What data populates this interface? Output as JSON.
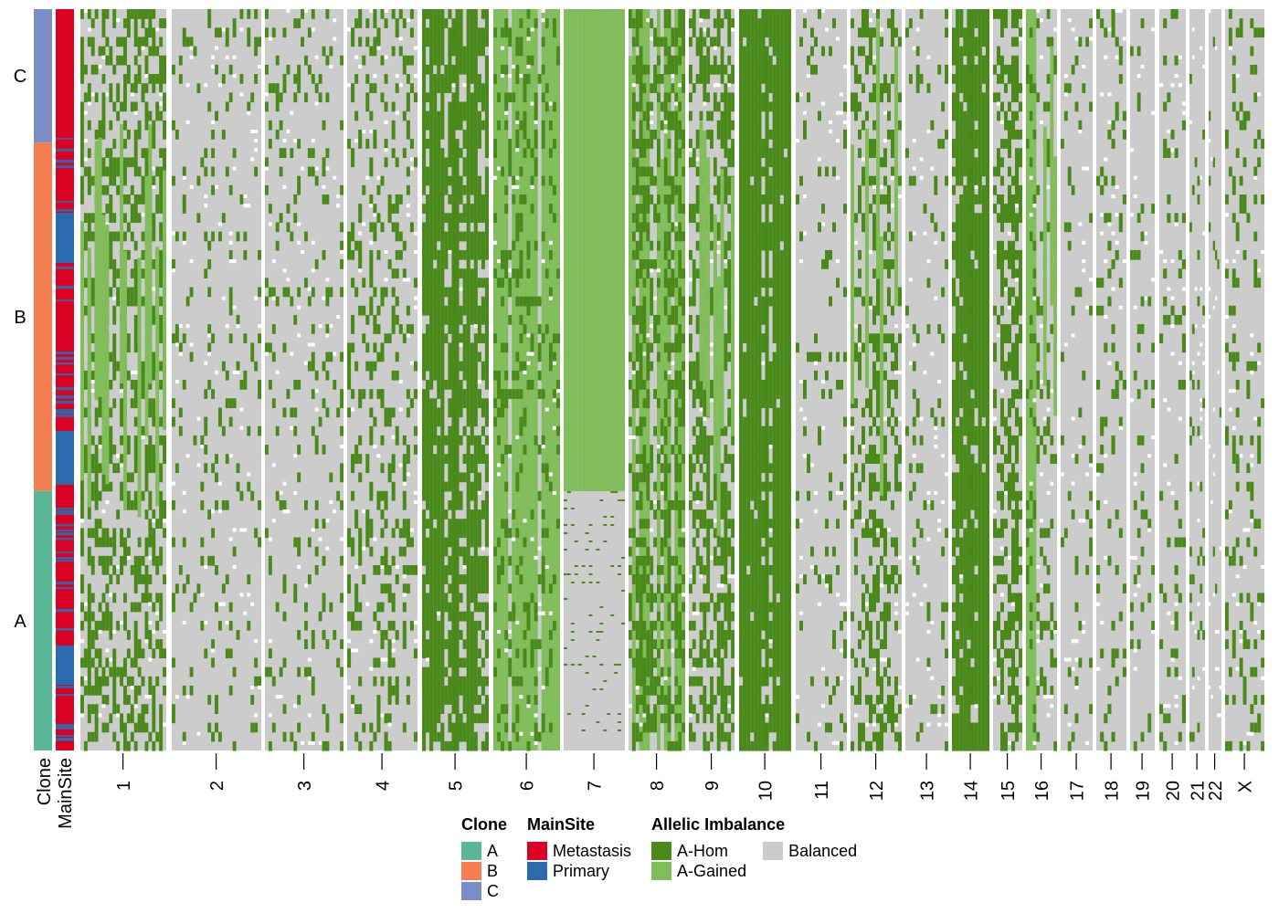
{
  "chart_data": {
    "type": "heatmap",
    "row_annotation_labels": [
      "Clone",
      "MainSite"
    ],
    "clone_groups": [
      {
        "label": "C",
        "fraction": 0.18
      },
      {
        "label": "B",
        "fraction": 0.47
      },
      {
        "label": "A",
        "fraction": 0.35
      }
    ],
    "chromosomes": [
      {
        "label": "1",
        "ahom": 0.5,
        "again": 0.35,
        "topchange": false
      },
      {
        "label": "2",
        "ahom": 0.1,
        "again": 0.02,
        "topchange": false
      },
      {
        "label": "3",
        "ahom": 0.12,
        "again": 0.02,
        "topchange": false
      },
      {
        "label": "4",
        "ahom": 0.22,
        "again": 0.03,
        "topchange": false
      },
      {
        "label": "5",
        "ahom": 0.82,
        "again": 0.12,
        "topchange": false
      },
      {
        "label": "6",
        "ahom": 0.2,
        "again": 0.72,
        "topchange": false
      },
      {
        "label": "7",
        "ahom": 0.05,
        "again": 0.9,
        "topchange": true
      },
      {
        "label": "8",
        "ahom": 0.45,
        "again": 0.45,
        "topchange": false
      },
      {
        "label": "9",
        "ahom": 0.5,
        "again": 0.35,
        "topchange": false
      },
      {
        "label": "10",
        "ahom": 0.88,
        "again": 0.08,
        "topchange": false
      },
      {
        "label": "11",
        "ahom": 0.08,
        "again": 0.03,
        "topchange": false
      },
      {
        "label": "12",
        "ahom": 0.35,
        "again": 0.25,
        "topchange": false
      },
      {
        "label": "13",
        "ahom": 0.08,
        "again": 0.02,
        "topchange": false
      },
      {
        "label": "14",
        "ahom": 0.85,
        "again": 0.05,
        "topchange": false
      },
      {
        "label": "15",
        "ahom": 0.55,
        "again": 0.1,
        "topchange": false
      },
      {
        "label": "16",
        "ahom": 0.15,
        "again": 0.4,
        "topchange": false
      },
      {
        "label": "17",
        "ahom": 0.08,
        "again": 0.02,
        "topchange": false
      },
      {
        "label": "18",
        "ahom": 0.15,
        "again": 0.03,
        "topchange": false
      },
      {
        "label": "19",
        "ahom": 0.1,
        "again": 0.02,
        "topchange": false
      },
      {
        "label": "20",
        "ahom": 0.12,
        "again": 0.03,
        "topchange": false
      },
      {
        "label": "21",
        "ahom": 0.1,
        "again": 0.02,
        "topchange": false
      },
      {
        "label": "22",
        "ahom": 0.02,
        "again": 0.02,
        "topchange": false
      },
      {
        "label": "X",
        "ahom": 0.15,
        "again": 0.03,
        "topchange": false
      }
    ]
  },
  "colors": {
    "clone_A": "#5ab796",
    "clone_B": "#f47e52",
    "clone_C": "#7b8ec8",
    "metastasis": "#dc0023",
    "primary": "#2a6bb0",
    "ahom": "#4a8a1b",
    "again": "#82bd5c",
    "balanced": "#cccccc"
  },
  "legend": {
    "clone": {
      "title": "Clone",
      "items": [
        "A",
        "B",
        "C"
      ]
    },
    "mainsite": {
      "title": "MainSite",
      "items": [
        "Metastasis",
        "Primary"
      ]
    },
    "ai": {
      "title": "Allelic Imbalance",
      "items": [
        "A-Hom",
        "A-Gained",
        "Balanced"
      ]
    }
  }
}
